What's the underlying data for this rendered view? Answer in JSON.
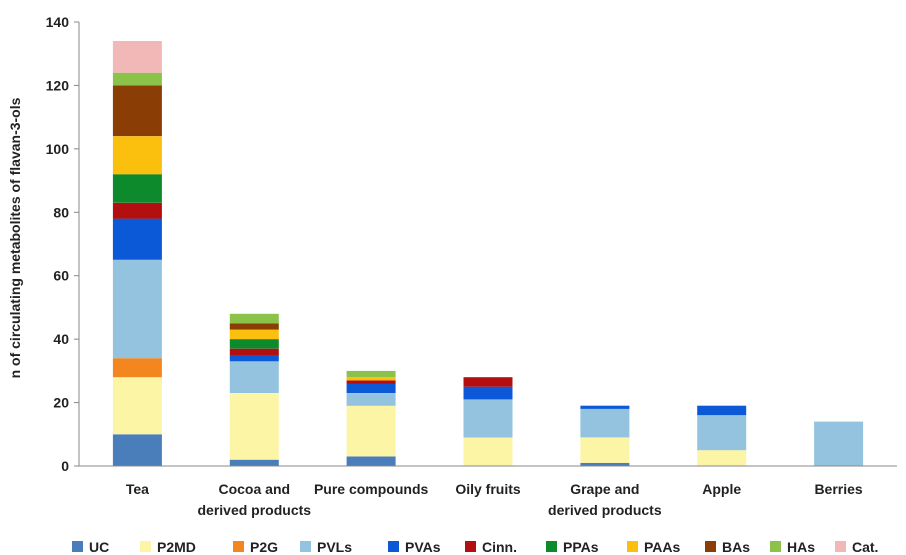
{
  "chart_data": {
    "type": "bar",
    "stacked": true,
    "ylabel": "n of circulating metabolites of flavan-3-ols",
    "xlabel": "",
    "ylim": [
      0,
      140
    ],
    "yticks": [
      0,
      20,
      40,
      60,
      80,
      100,
      120,
      140
    ],
    "grid": false,
    "legend_position": "bottom",
    "categories": [
      [
        "Tea"
      ],
      [
        "Cocoa and",
        "derived products"
      ],
      [
        "Pure compounds"
      ],
      [
        "Oily fruits"
      ],
      [
        "Grape and",
        "derived products"
      ],
      [
        "Apple"
      ],
      [
        "Berries"
      ]
    ],
    "series": [
      {
        "name": "UC",
        "color": "#4a7ebb",
        "values": [
          10,
          2,
          3,
          0,
          1,
          0,
          0
        ]
      },
      {
        "name": "P2MD",
        "color": "#fdf5a6",
        "values": [
          18,
          21,
          16,
          9,
          8,
          5,
          0
        ]
      },
      {
        "name": "P2G",
        "color": "#f4861f",
        "values": [
          6,
          0,
          0,
          0,
          0,
          0,
          0
        ]
      },
      {
        "name": "PVLs",
        "color": "#93c3df",
        "values": [
          31,
          10,
          4,
          12,
          9,
          11,
          14
        ]
      },
      {
        "name": "PVAs",
        "color": "#0b59d6",
        "values": [
          13,
          2,
          3,
          4,
          1,
          3,
          0
        ]
      },
      {
        "name": "Cinn.",
        "color": "#b30f10",
        "values": [
          5,
          2,
          1,
          3,
          0,
          0,
          0
        ]
      },
      {
        "name": "PPAs",
        "color": "#0c8a2c",
        "values": [
          9,
          3,
          0,
          0,
          0,
          0,
          0
        ]
      },
      {
        "name": "PAAs",
        "color": "#fbbf0e",
        "values": [
          12,
          3,
          1,
          0,
          0,
          0,
          0
        ]
      },
      {
        "name": "BAs",
        "color": "#8a3e06",
        "values": [
          16,
          2,
          0,
          0,
          0,
          0,
          0
        ]
      },
      {
        "name": "HAs",
        "color": "#8ac24a",
        "values": [
          4,
          3,
          2,
          0,
          0,
          0,
          0
        ]
      },
      {
        "name": "Cat.",
        "color": "#f2b8b8",
        "values": [
          10,
          0,
          0,
          0,
          0,
          0,
          0
        ]
      }
    ]
  }
}
